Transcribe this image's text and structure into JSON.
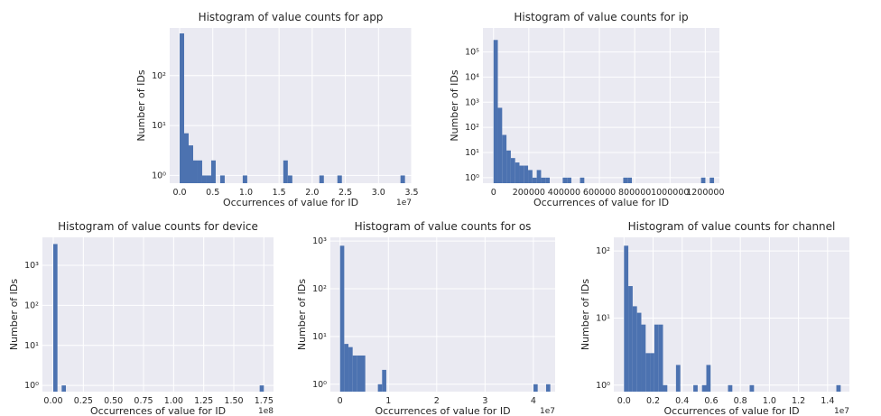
{
  "colors": {
    "plot_bg": "#eaeaf2",
    "bar": "#4c72b0",
    "grid": "#ffffff",
    "text": "#262626"
  },
  "chart_data": [
    {
      "type": "bar",
      "title": "Histogram of value counts for app",
      "xlabel": "Occurrences of value for ID",
      "ylabel": "Number of IDs",
      "x_offset_label": "1e7",
      "y_scale": "log",
      "grid": true,
      "xlim": [
        -0.15,
        3.5
      ],
      "ylim": [
        0.7,
        900
      ],
      "x_ticks": [
        0.0,
        0.5,
        1.0,
        1.5,
        2.0,
        2.5,
        3.0,
        3.5
      ],
      "x_tick_labels": [
        "0.0",
        "0.5",
        "1.0",
        "1.5",
        "2.0",
        "2.5",
        "3.0",
        "3.5"
      ],
      "y_ticks": [
        1,
        10,
        100
      ],
      "y_tick_labels": [
        "10⁰",
        "10¹",
        "10²"
      ],
      "bin_width": 0.068,
      "bin_starts": [
        0.0,
        0.068,
        0.136,
        0.204,
        0.272,
        0.34,
        0.408,
        0.476,
        0.612,
        0.952,
        1.564,
        1.632,
        2.108,
        2.38,
        3.332
      ],
      "counts": [
        700,
        7,
        4,
        2,
        2,
        1,
        1,
        2,
        1,
        1,
        2,
        1,
        1,
        1,
        1
      ]
    },
    {
      "type": "bar",
      "title": "Histogram of value counts for ip",
      "xlabel": "Occurrences of value for ID",
      "ylabel": "Number of IDs",
      "x_offset_label": "",
      "y_scale": "log",
      "grid": true,
      "xlim": [
        -60000,
        1280000
      ],
      "ylim": [
        0.6,
        900000
      ],
      "x_ticks": [
        0,
        200000,
        400000,
        600000,
        800000,
        1000000,
        1200000
      ],
      "x_tick_labels": [
        "0",
        "200000",
        "400000",
        "600000",
        "800000",
        "1000000",
        "1200000"
      ],
      "y_ticks": [
        1,
        10,
        100,
        1000,
        10000,
        100000
      ],
      "y_tick_labels": [
        "10⁰",
        "10¹",
        "10²",
        "10³",
        "10⁴",
        "10⁵"
      ],
      "bin_width": 24500,
      "bin_starts": [
        0,
        24500,
        49000,
        73500,
        98000,
        122500,
        147000,
        171500,
        196000,
        220500,
        245000,
        269500,
        294000,
        392000,
        416500,
        490000,
        735000,
        759500,
        1176000,
        1225000
      ],
      "counts": [
        300000,
        600,
        50,
        12,
        6,
        4,
        3,
        3,
        2,
        1,
        2,
        1,
        1,
        1,
        1,
        1,
        1,
        1,
        1,
        1
      ]
    },
    {
      "type": "bar",
      "title": "Histogram of value counts for device",
      "xlabel": "Occurrences of value for ID",
      "ylabel": "Number of IDs",
      "x_offset_label": "1e8",
      "y_scale": "log",
      "grid": true,
      "xlim": [
        -0.09,
        1.83
      ],
      "ylim": [
        0.7,
        5000
      ],
      "x_ticks": [
        0.0,
        0.25,
        0.5,
        0.75,
        1.0,
        1.25,
        1.5,
        1.75
      ],
      "x_tick_labels": [
        "0.00",
        "0.25",
        "0.50",
        "0.75",
        "1.00",
        "1.25",
        "1.50",
        "1.75"
      ],
      "y_ticks": [
        1,
        10,
        100,
        1000
      ],
      "y_tick_labels": [
        "10⁰",
        "10¹",
        "10²",
        "10³"
      ],
      "bin_width": 0.035,
      "bin_starts": [
        0.0,
        0.07,
        1.715
      ],
      "counts": [
        3400,
        1,
        1
      ]
    },
    {
      "type": "bar",
      "title": "Histogram of value counts for os",
      "xlabel": "Occurrences of value for ID",
      "ylabel": "Number of IDs",
      "x_offset_label": "1e7",
      "y_scale": "log",
      "grid": true,
      "xlim": [
        -0.2,
        4.45
      ],
      "ylim": [
        0.7,
        1200
      ],
      "x_ticks": [
        0,
        1,
        2,
        3,
        4
      ],
      "x_tick_labels": [
        "0",
        "1",
        "2",
        "3",
        "4"
      ],
      "y_ticks": [
        1,
        10,
        100,
        1000
      ],
      "y_tick_labels": [
        "10⁰",
        "10¹",
        "10²",
        "10³"
      ],
      "bin_width": 0.087,
      "bin_starts": [
        0.0,
        0.087,
        0.174,
        0.261,
        0.348,
        0.435,
        0.783,
        0.87,
        4.002,
        4.263
      ],
      "counts": [
        800,
        7,
        6,
        4,
        4,
        4,
        1,
        2,
        1,
        1
      ]
    },
    {
      "type": "bar",
      "title": "Histogram of value counts for channel",
      "xlabel": "Occurrences of value for ID",
      "ylabel": "Number of IDs",
      "x_offset_label": "1e7",
      "y_scale": "log",
      "grid": true,
      "xlim": [
        -0.07,
        1.55
      ],
      "ylim": [
        0.8,
        160
      ],
      "x_ticks": [
        0.0,
        0.2,
        0.4,
        0.6,
        0.8,
        1.0,
        1.2,
        1.4
      ],
      "x_tick_labels": [
        "0.0",
        "0.2",
        "0.4",
        "0.6",
        "0.8",
        "1.0",
        "1.2",
        "1.4"
      ],
      "y_ticks": [
        1,
        10,
        100
      ],
      "y_tick_labels": [
        "10⁰",
        "10¹",
        "10²"
      ],
      "bin_width": 0.0298,
      "bin_starts": [
        0.0,
        0.0298,
        0.0596,
        0.0894,
        0.1192,
        0.149,
        0.1788,
        0.2086,
        0.2384,
        0.2682,
        0.3576,
        0.4768,
        0.5364,
        0.5662,
        0.7152,
        0.8642,
        1.4602
      ],
      "counts": [
        120,
        30,
        15,
        12,
        8,
        3,
        3,
        8,
        8,
        1,
        2,
        1,
        1,
        2,
        1,
        1,
        1
      ]
    }
  ]
}
